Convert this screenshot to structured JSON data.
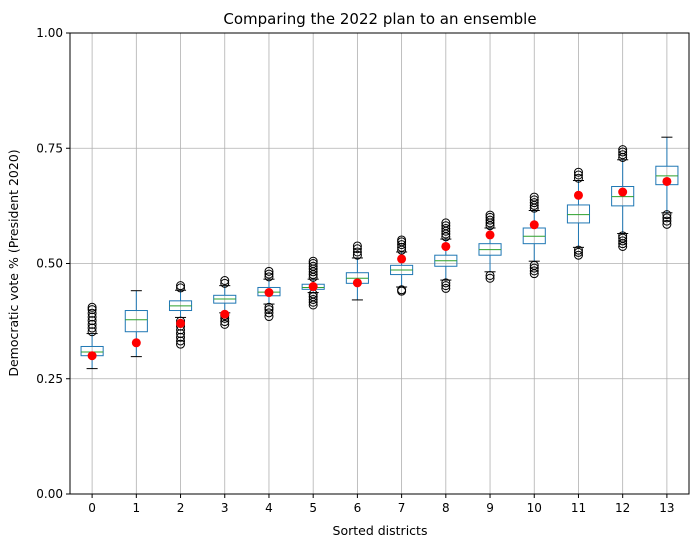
{
  "chart_data": {
    "type": "box",
    "title": "Comparing the 2022 plan to an ensemble",
    "xlabel": "Sorted districts",
    "ylabel": "Democratic vote % (President 2020)",
    "ylim": [
      0,
      1
    ],
    "yticks": [
      0.0,
      0.25,
      0.5,
      0.75,
      1.0
    ],
    "ytick_labels": [
      "0.00",
      "0.25",
      "0.50",
      "0.75",
      "1.00"
    ],
    "grid": true,
    "categories": [
      "0",
      "1",
      "2",
      "3",
      "4",
      "5",
      "6",
      "7",
      "8",
      "9",
      "10",
      "11",
      "12",
      "13"
    ],
    "boxes": [
      {
        "whislo": 0.272,
        "q1": 0.3,
        "med": 0.308,
        "q3": 0.32,
        "whishi": 0.348,
        "fliers": [
          0.352,
          0.36,
          0.368,
          0.376,
          0.384,
          0.392,
          0.4,
          0.405
        ]
      },
      {
        "whislo": 0.298,
        "q1": 0.352,
        "med": 0.378,
        "q3": 0.398,
        "whishi": 0.441,
        "fliers": []
      },
      {
        "whislo": 0.383,
        "q1": 0.398,
        "med": 0.408,
        "q3": 0.419,
        "whishi": 0.442,
        "fliers": [
          0.325,
          0.332,
          0.34,
          0.348,
          0.356,
          0.364,
          0.37,
          0.375,
          0.447,
          0.452
        ]
      },
      {
        "whislo": 0.393,
        "q1": 0.414,
        "med": 0.423,
        "q3": 0.431,
        "whishi": 0.452,
        "fliers": [
          0.368,
          0.374,
          0.381,
          0.387,
          0.457,
          0.463
        ]
      },
      {
        "whislo": 0.412,
        "q1": 0.43,
        "med": 0.438,
        "q3": 0.448,
        "whishi": 0.466,
        "fliers": [
          0.385,
          0.393,
          0.4,
          0.405,
          0.471,
          0.477,
          0.483
        ]
      },
      {
        "whislo": 0.437,
        "q1": 0.444,
        "med": 0.448,
        "q3": 0.455,
        "whishi": 0.466,
        "fliers": [
          0.41,
          0.416,
          0.422,
          0.428,
          0.434,
          0.47,
          0.476,
          0.482,
          0.488,
          0.494,
          0.5,
          0.505
        ]
      },
      {
        "whislo": 0.421,
        "q1": 0.457,
        "med": 0.468,
        "q3": 0.48,
        "whishi": 0.512,
        "fliers": [
          0.518,
          0.525,
          0.532,
          0.538
        ]
      },
      {
        "whislo": 0.449,
        "q1": 0.476,
        "med": 0.486,
        "q3": 0.496,
        "whishi": 0.525,
        "fliers": [
          0.44,
          0.443,
          0.529,
          0.535,
          0.541,
          0.547,
          0.551
        ]
      },
      {
        "whislo": 0.464,
        "q1": 0.494,
        "med": 0.506,
        "q3": 0.518,
        "whishi": 0.553,
        "fliers": [
          0.446,
          0.452,
          0.458,
          0.558,
          0.564,
          0.57,
          0.576,
          0.582,
          0.588
        ]
      },
      {
        "whislo": 0.482,
        "q1": 0.518,
        "med": 0.53,
        "q3": 0.543,
        "whishi": 0.577,
        "fliers": [
          0.468,
          0.474,
          0.582,
          0.588,
          0.594,
          0.6,
          0.605
        ]
      },
      {
        "whislo": 0.505,
        "q1": 0.543,
        "med": 0.559,
        "q3": 0.577,
        "whishi": 0.615,
        "fliers": [
          0.478,
          0.484,
          0.49,
          0.496,
          0.62,
          0.626,
          0.632,
          0.638,
          0.644
        ]
      },
      {
        "whislo": 0.535,
        "q1": 0.588,
        "med": 0.606,
        "q3": 0.627,
        "whishi": 0.68,
        "fliers": [
          0.518,
          0.524,
          0.529,
          0.685,
          0.692,
          0.698
        ]
      },
      {
        "whislo": 0.565,
        "q1": 0.625,
        "med": 0.645,
        "q3": 0.667,
        "whishi": 0.725,
        "fliers": [
          0.537,
          0.543,
          0.549,
          0.555,
          0.56,
          0.73,
          0.736,
          0.742,
          0.747
        ]
      },
      {
        "whislo": 0.61,
        "q1": 0.671,
        "med": 0.69,
        "q3": 0.711,
        "whishi": 0.774,
        "fliers": [
          0.585,
          0.592,
          0.599,
          0.606
        ]
      }
    ],
    "plan_points": {
      "color": "#ff0000",
      "values": [
        0.3,
        0.328,
        0.37,
        0.39,
        0.437,
        0.45,
        0.458,
        0.51,
        0.537,
        0.562,
        0.584,
        0.648,
        0.655,
        0.678
      ]
    },
    "colors": {
      "box": "#1f77b4",
      "median": "#2ca02c",
      "whisker": "#000000",
      "flier": "#000000",
      "grid": "#b0b0b0"
    }
  }
}
